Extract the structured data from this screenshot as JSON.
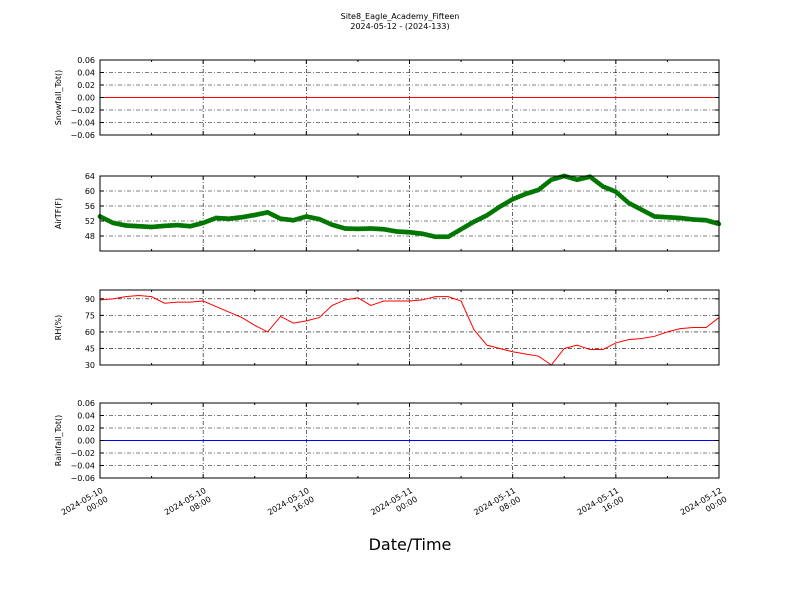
{
  "figure": {
    "title_line1": "Site8_Eagle_Academy_Fifteen",
    "title_line2": "2024-05-12 - (2024-133)",
    "xlabel": "Date/Time"
  },
  "chart_data": [
    {
      "type": "line",
      "ylabel": "Snowfall_Tot()",
      "ylim": [
        -0.06,
        0.06
      ],
      "yticks": [
        -0.06,
        -0.04,
        -0.02,
        0.0,
        0.02,
        0.04,
        0.06
      ],
      "ytick_labels": [
        "−0.06",
        "−0.04",
        "−0.02",
        "0.00",
        "0.02",
        "0.04",
        "0.06"
      ],
      "color": "#ff0000",
      "marker": "none",
      "grid": true,
      "x": [
        "2024-05-10 00:00",
        "2024-05-12 00:00"
      ],
      "values": [
        0.0,
        0.0
      ]
    },
    {
      "type": "line",
      "ylabel": "AirTF(F)",
      "ylim": [
        44,
        64
      ],
      "yticks": [
        48,
        52,
        56,
        60,
        64
      ],
      "ytick_labels": [
        "48",
        "52",
        "56",
        "60",
        "64"
      ],
      "color": "#007700",
      "marker": "circle",
      "grid": true,
      "x": [
        "2024-05-10 00:00",
        "2024-05-10 01:00",
        "2024-05-10 02:00",
        "2024-05-10 03:00",
        "2024-05-10 04:00",
        "2024-05-10 05:00",
        "2024-05-10 06:00",
        "2024-05-10 07:00",
        "2024-05-10 08:00",
        "2024-05-10 09:00",
        "2024-05-10 10:00",
        "2024-05-10 11:00",
        "2024-05-10 12:00",
        "2024-05-10 13:00",
        "2024-05-10 14:00",
        "2024-05-10 15:00",
        "2024-05-10 16:00",
        "2024-05-10 17:00",
        "2024-05-10 18:00",
        "2024-05-10 19:00",
        "2024-05-10 20:00",
        "2024-05-10 21:00",
        "2024-05-10 22:00",
        "2024-05-10 23:00",
        "2024-05-11 00:00",
        "2024-05-11 01:00",
        "2024-05-11 02:00",
        "2024-05-11 03:00",
        "2024-05-11 04:00",
        "2024-05-11 05:00",
        "2024-05-11 06:00",
        "2024-05-11 07:00",
        "2024-05-11 08:00",
        "2024-05-11 09:00",
        "2024-05-11 10:00",
        "2024-05-11 11:00",
        "2024-05-11 12:00",
        "2024-05-11 13:00",
        "2024-05-11 14:00",
        "2024-05-11 15:00",
        "2024-05-11 16:00",
        "2024-05-11 17:00",
        "2024-05-11 18:00",
        "2024-05-11 19:00",
        "2024-05-11 20:00",
        "2024-05-11 21:00",
        "2024-05-11 22:00",
        "2024-05-11 23:00",
        "2024-05-12 00:00"
      ],
      "values": [
        53.2,
        51.5,
        50.8,
        50.6,
        50.4,
        50.7,
        50.9,
        50.6,
        51.5,
        52.8,
        52.6,
        53.0,
        53.6,
        54.3,
        52.6,
        52.2,
        53.2,
        52.5,
        51.0,
        50.0,
        49.9,
        50.0,
        49.8,
        49.2,
        49.0,
        48.6,
        47.8,
        47.8,
        49.8,
        51.8,
        53.5,
        55.8,
        57.8,
        59.2,
        60.3,
        63.0,
        64.0,
        63.0,
        63.8,
        61.2,
        59.8,
        56.8,
        55.0,
        53.2,
        53.0,
        52.8,
        52.4,
        52.2,
        51.2
      ]
    },
    {
      "type": "line",
      "ylabel": "RH(%)",
      "ylim": [
        30,
        98
      ],
      "yticks": [
        30,
        45,
        60,
        75,
        90
      ],
      "ytick_labels": [
        "30",
        "45",
        "60",
        "75",
        "90"
      ],
      "color": "#ff0000",
      "marker": "none",
      "grid": true,
      "x": [
        "2024-05-10 00:00",
        "2024-05-10 01:00",
        "2024-05-10 02:00",
        "2024-05-10 03:00",
        "2024-05-10 04:00",
        "2024-05-10 05:00",
        "2024-05-10 06:00",
        "2024-05-10 07:00",
        "2024-05-10 08:00",
        "2024-05-10 09:00",
        "2024-05-10 10:00",
        "2024-05-10 11:00",
        "2024-05-10 12:00",
        "2024-05-10 13:00",
        "2024-05-10 14:00",
        "2024-05-10 15:00",
        "2024-05-10 16:00",
        "2024-05-10 17:00",
        "2024-05-10 18:00",
        "2024-05-10 19:00",
        "2024-05-10 20:00",
        "2024-05-10 21:00",
        "2024-05-10 22:00",
        "2024-05-10 23:00",
        "2024-05-11 00:00",
        "2024-05-11 01:00",
        "2024-05-11 02:00",
        "2024-05-11 03:00",
        "2024-05-11 04:00",
        "2024-05-11 05:00",
        "2024-05-11 06:00",
        "2024-05-11 07:00",
        "2024-05-11 08:00",
        "2024-05-11 09:00",
        "2024-05-11 10:00",
        "2024-05-11 11:00",
        "2024-05-11 12:00",
        "2024-05-11 13:00",
        "2024-05-11 14:00",
        "2024-05-11 15:00",
        "2024-05-11 16:00",
        "2024-05-11 17:00",
        "2024-05-11 18:00",
        "2024-05-11 19:00",
        "2024-05-11 20:00",
        "2024-05-11 21:00",
        "2024-05-11 22:00",
        "2024-05-11 23:00",
        "2024-05-12 00:00"
      ],
      "values": [
        89,
        90,
        92,
        93,
        92,
        86,
        87,
        87,
        88,
        83,
        78,
        73,
        66,
        60,
        74,
        68,
        70,
        73,
        84,
        89,
        91,
        84,
        88,
        88,
        88,
        89,
        92,
        92,
        88,
        62,
        48,
        45,
        42,
        40,
        38,
        30,
        45,
        48,
        44,
        44,
        50,
        53,
        54,
        56,
        60,
        63,
        64,
        64,
        73
      ]
    },
    {
      "type": "line",
      "ylabel": "Rainfall_Tot()",
      "ylim": [
        -0.06,
        0.06
      ],
      "yticks": [
        -0.06,
        -0.04,
        -0.02,
        0.0,
        0.02,
        0.04,
        0.06
      ],
      "ytick_labels": [
        "−0.06",
        "−0.04",
        "−0.02",
        "0.00",
        "0.02",
        "0.04",
        "0.06"
      ],
      "color": "#0000ff",
      "marker": "none",
      "grid": true,
      "x": [
        "2024-05-10 00:00",
        "2024-05-12 00:00"
      ],
      "values": [
        0.0,
        0.0
      ]
    }
  ],
  "xaxis": {
    "range": [
      "2024-05-10 00:00",
      "2024-05-12 00:00"
    ],
    "ticks": [
      {
        "line1": "2024-05-10",
        "line2": "00:00"
      },
      {
        "line1": "2024-05-10",
        "line2": "08:00"
      },
      {
        "line1": "2024-05-10",
        "line2": "16:00"
      },
      {
        "line1": "2024-05-11",
        "line2": "00:00"
      },
      {
        "line1": "2024-05-11",
        "line2": "08:00"
      },
      {
        "line1": "2024-05-11",
        "line2": "16:00"
      },
      {
        "line1": "2024-05-12",
        "line2": "00:00"
      }
    ]
  }
}
